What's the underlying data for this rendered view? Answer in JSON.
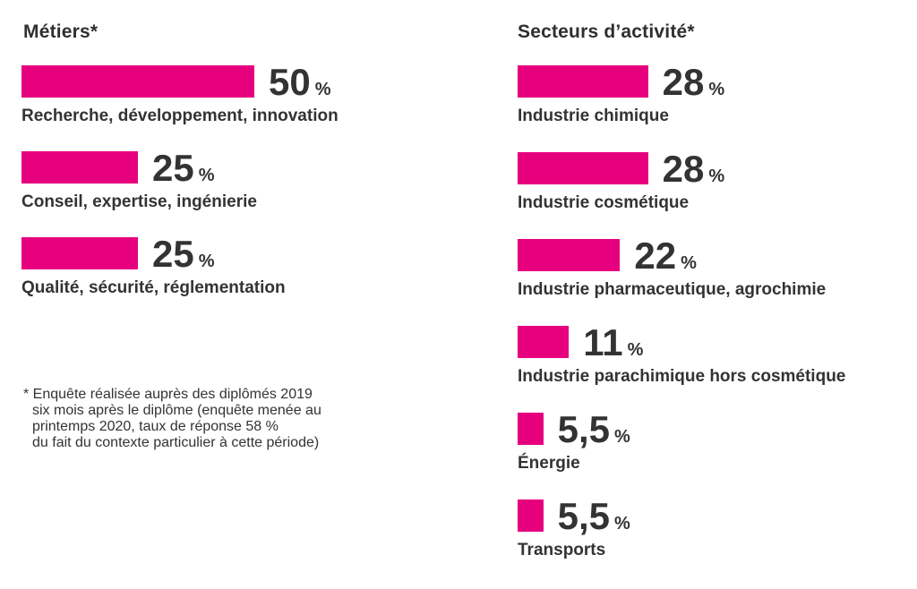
{
  "colors": {
    "bar": "#e6007e",
    "text": "#333333"
  },
  "chart_data": [
    {
      "type": "bar",
      "orientation": "horizontal",
      "title": "Métiers*",
      "unit": "%",
      "categories": [
        "Recherche, développement, innovation",
        "Conseil, expertise, ingénierie",
        "Qualité, sécurité, réglementation"
      ],
      "values": [
        50,
        25,
        25
      ],
      "value_labels": [
        "50",
        "25",
        "25"
      ],
      "grid": false
    },
    {
      "type": "bar",
      "orientation": "horizontal",
      "title": "Secteurs d’activité*",
      "unit": "%",
      "categories": [
        "Industrie chimique",
        "Industrie cosmétique",
        "Industrie pharmaceutique, agrochimie",
        "Industrie parachimique hors cosmétique",
        "Énergie",
        "Transports"
      ],
      "values": [
        28,
        28,
        22,
        11,
        5.5,
        5.5
      ],
      "value_labels": [
        "28",
        "28",
        "22",
        "11",
        "5,5",
        "5,5"
      ],
      "grid": false
    }
  ],
  "footnote": [
    "* Enquête réalisée auprès des diplômés 2019",
    "six mois après le diplôme (enquête menée au",
    "printemps 2020, taux de réponse 58 %",
    "du fait du contexte particulier à cette période)"
  ]
}
